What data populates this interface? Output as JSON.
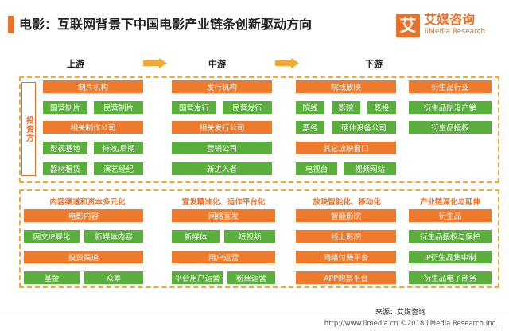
{
  "title": "电影：互联网背景下中国电影产业链条创新驱动方向",
  "logo": {
    "mark": "艾",
    "name_cn": "艾媒咨询",
    "name_en": "iiMedia Research"
  },
  "stages": {
    "upstream": "上游",
    "midstream": "中游",
    "downstream": "下游"
  },
  "side_label": "投资方",
  "top": {
    "col1": {
      "header1": "制片机构",
      "row1": [
        "国营制片",
        "民营制片"
      ],
      "header2": "相关制作公司",
      "row2": [
        "影视基地",
        "特效/后期"
      ],
      "row3": [
        "器材租赁",
        "演艺经纪"
      ]
    },
    "col2": {
      "header1": "发行机构",
      "row1": [
        "国营发行",
        "民营发行"
      ],
      "header2": "相关发行公司",
      "item3": "营销公司",
      "item4": "新进入者"
    },
    "col3": {
      "header1": "院线放映",
      "row1": [
        "院线",
        "影院",
        "影投"
      ],
      "row2": [
        "票务",
        "硬件设备公司"
      ],
      "header2": "其它放映窗口",
      "row3": [
        "电视台",
        "视频网站"
      ]
    },
    "col4": {
      "header1": "衍生品行业",
      "item1": "衍生品制没产销",
      "item2": "衍生品授权"
    }
  },
  "bottom": {
    "col1": {
      "category": "内容渠道和资本多元化",
      "header1": "电影内容",
      "row1": [
        "网文IP孵化",
        "新媒体内容"
      ],
      "header2": "投资渠道",
      "row2": [
        "基金",
        "众筹"
      ]
    },
    "col2": {
      "category": "宣发精准化、运作平台化",
      "header1": "网络宣发",
      "row1": [
        "新媒体",
        "短视频"
      ],
      "header2": "用户运营",
      "row2": [
        "平台用户运营",
        "粉丝运营"
      ]
    },
    "col3": {
      "category": "放映智能化、移动化",
      "header1": "智能影院",
      "header2": "线上影院",
      "header3": "网络付费平台",
      "header4": "APP购票平台"
    },
    "col4": {
      "category": "产业链深化与延伸",
      "header1": "衍生品",
      "item1": "衍生品授权与保护",
      "item2": "IP衍生品集中制",
      "item3": "衍生品电子商务"
    }
  },
  "source": "来源：艾媒咨询",
  "footer": "http://www.iimedia.cn    ©2018 iiMedia Research Inc."
}
